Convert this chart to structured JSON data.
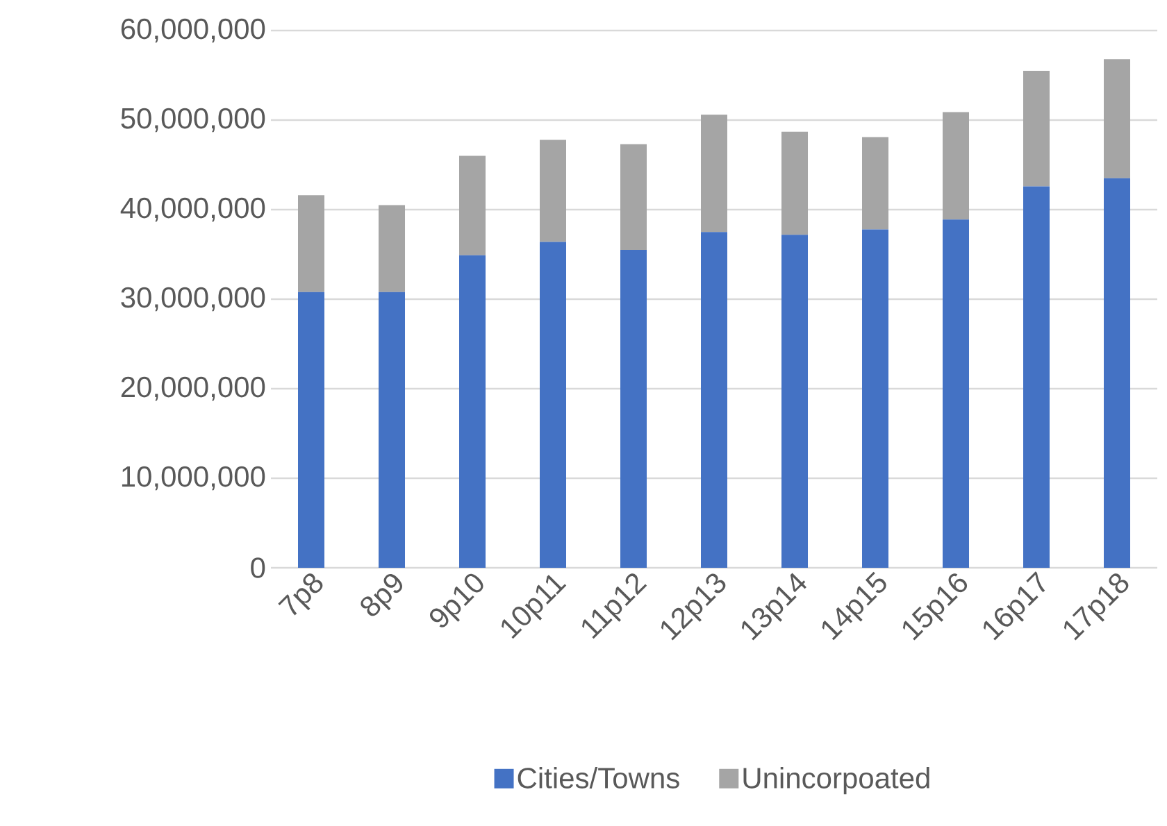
{
  "chart_data": {
    "type": "bar",
    "stacked": true,
    "categories": [
      "7p8",
      "8p9",
      "9p10",
      "10p11",
      "11p12",
      "12p13",
      "13p14",
      "14p15",
      "15p16",
      "16p17",
      "17p18"
    ],
    "series": [
      {
        "name": "Cities/Towns",
        "color": "#4472c4",
        "values": [
          30800000,
          30800000,
          34900000,
          36400000,
          35500000,
          37500000,
          37200000,
          37800000,
          38900000,
          42600000,
          43500000
        ]
      },
      {
        "name": "Unincorpoated",
        "color": "#a5a5a5",
        "values": [
          10800000,
          9700000,
          11100000,
          11400000,
          11800000,
          13100000,
          11500000,
          10300000,
          12000000,
          12900000,
          13300000
        ]
      }
    ],
    "ylim": [
      0,
      60000000
    ],
    "yticks": [
      {
        "value": 0,
        "label": "0"
      },
      {
        "value": 10000000,
        "label": "10,000,000"
      },
      {
        "value": 20000000,
        "label": "20,000,000"
      },
      {
        "value": 30000000,
        "label": "30,000,000"
      },
      {
        "value": 40000000,
        "label": "40,000,000"
      },
      {
        "value": 50000000,
        "label": "50,000,000"
      },
      {
        "value": 60000000,
        "label": "60,000,000"
      }
    ],
    "grid": "y",
    "legend": "bottom"
  }
}
